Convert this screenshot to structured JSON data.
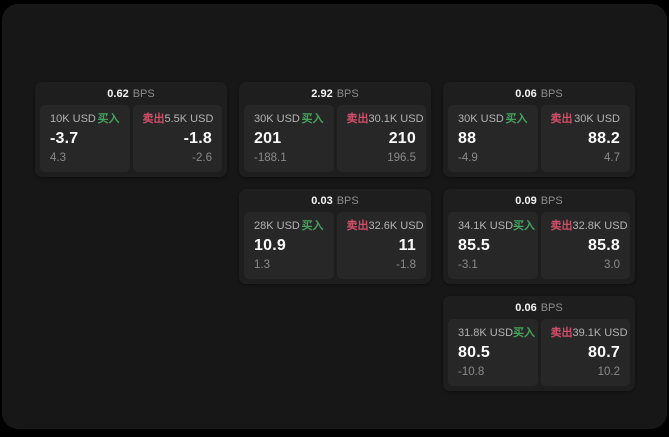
{
  "labels": {
    "bps_unit": "BPS",
    "buy": "买入",
    "sell": "卖出"
  },
  "colors": {
    "buy_green": "#45a35e",
    "sell_red": "#cf4f68",
    "background": "#000000",
    "panel": "#171717",
    "card": "#1e1e1e",
    "tile": "#272727"
  },
  "cards": [
    {
      "bps": "0.62",
      "buy": {
        "notional": "10K USD",
        "price": "-3.7",
        "delta": "4.3"
      },
      "sell": {
        "notional": "5.5K USD",
        "price": "-1.8",
        "delta": "-2.6"
      }
    },
    {
      "bps": "2.92",
      "buy": {
        "notional": "30K USD",
        "price": "201",
        "delta": "-188.1"
      },
      "sell": {
        "notional": "30.1K USD",
        "price": "210",
        "delta": "196.5"
      }
    },
    {
      "bps": "0.06",
      "buy": {
        "notional": "30K USD",
        "price": "88",
        "delta": "-4.9"
      },
      "sell": {
        "notional": "30K USD",
        "price": "88.2",
        "delta": "4.7"
      }
    },
    {
      "bps": "0.03",
      "buy": {
        "notional": "28K USD",
        "price": "10.9",
        "delta": "1.3"
      },
      "sell": {
        "notional": "32.6K USD",
        "price": "11",
        "delta": "-1.8"
      }
    },
    {
      "bps": "0.09",
      "buy": {
        "notional": "34.1K USD",
        "price": "85.5",
        "delta": "-3.1"
      },
      "sell": {
        "notional": "32.8K USD",
        "price": "85.8",
        "delta": "3.0"
      }
    },
    {
      "bps": "0.06",
      "buy": {
        "notional": "31.8K USD",
        "price": "80.5",
        "delta": "-10.8"
      },
      "sell": {
        "notional": "39.1K USD",
        "price": "80.7",
        "delta": "10.2"
      }
    }
  ]
}
